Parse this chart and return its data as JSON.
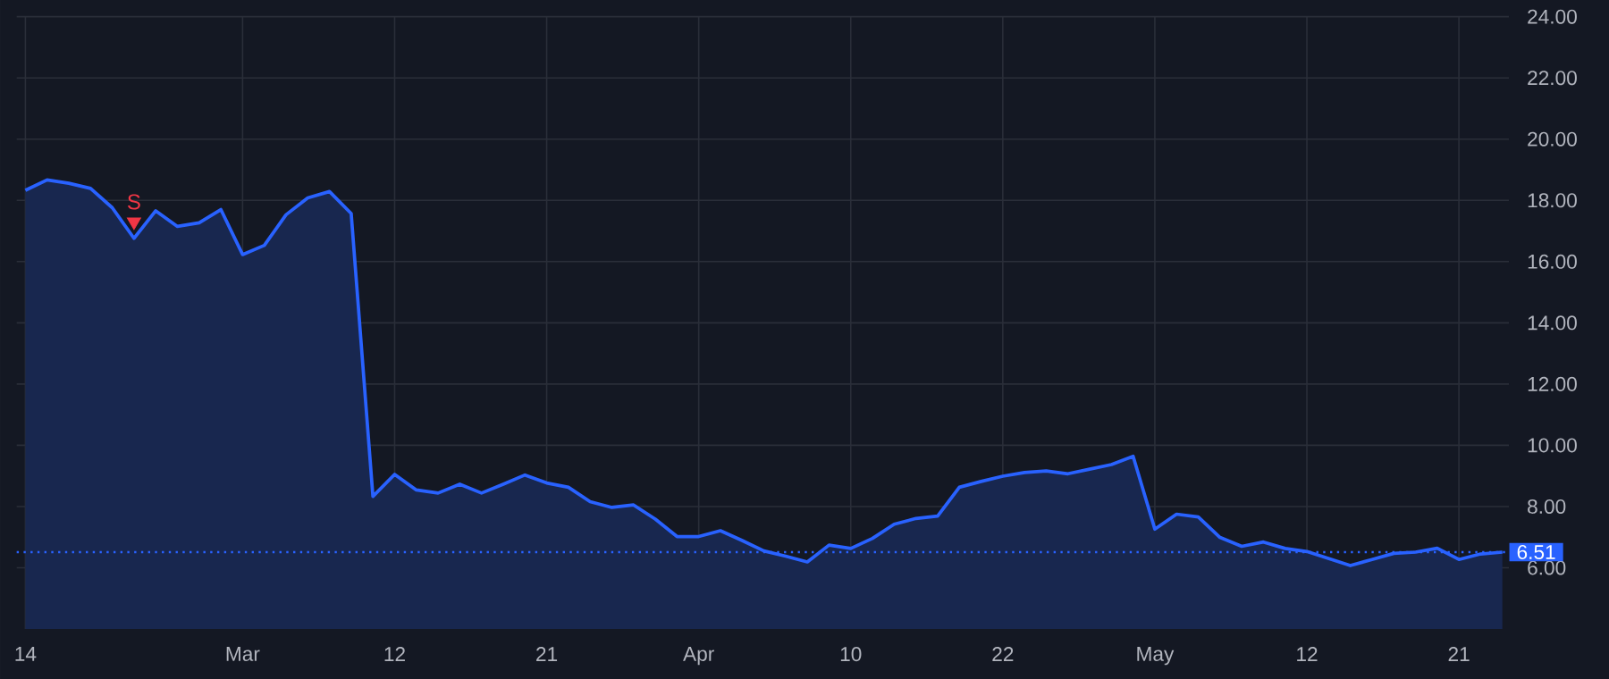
{
  "chart_data": {
    "type": "area",
    "categories": [
      "14",
      null,
      null,
      null,
      null,
      null,
      null,
      null,
      null,
      null,
      "Mar",
      null,
      null,
      null,
      null,
      null,
      null,
      "12",
      null,
      null,
      null,
      null,
      null,
      null,
      "21",
      null,
      null,
      null,
      null,
      null,
      null,
      "Apr",
      null,
      null,
      null,
      null,
      null,
      null,
      "10",
      null,
      null,
      null,
      null,
      null,
      null,
      "22",
      null,
      null,
      null,
      null,
      null,
      null,
      "May",
      null,
      null,
      null,
      null,
      null,
      null,
      "12",
      null,
      null,
      null,
      null,
      null,
      null,
      "21",
      null,
      null
    ],
    "series": [
      {
        "color": "#2962ff",
        "values": [
          18.33,
          18.67,
          18.56,
          18.39,
          17.76,
          16.76,
          17.66,
          17.15,
          17.27,
          17.7,
          16.23,
          16.53,
          17.53,
          18.08,
          18.29,
          17.57,
          8.33,
          9.05,
          8.54,
          8.44,
          8.73,
          8.44,
          8.73,
          9.03,
          8.77,
          8.63,
          8.16,
          7.97,
          8.05,
          7.59,
          7.02,
          7.02,
          7.21,
          6.89,
          6.55,
          6.38,
          6.19,
          6.74,
          6.63,
          6.96,
          7.42,
          7.61,
          7.69,
          8.63,
          8.82,
          8.99,
          9.11,
          9.16,
          9.07,
          9.22,
          9.37,
          9.64,
          7.26,
          7.75,
          7.66,
          6.99,
          6.7,
          6.84,
          6.63,
          6.53,
          6.3,
          6.07,
          6.27,
          6.47,
          6.51,
          6.64,
          6.27,
          6.45,
          6.51
        ]
      },
      {
        "type": "scatter",
        "name": "S",
        "color": "#f23645",
        "marker": "triangle",
        "values": [
          null,
          null,
          null,
          null,
          null,
          17.3,
          null,
          null,
          null,
          null,
          null,
          null,
          null,
          null,
          null,
          null,
          null,
          null,
          null,
          null,
          null,
          null,
          null,
          null,
          null,
          null,
          null,
          null,
          null,
          null,
          null,
          null,
          null,
          null,
          null,
          null,
          null,
          null,
          null,
          null,
          null,
          null,
          null,
          null,
          null,
          null,
          null,
          null,
          null,
          null,
          null,
          null,
          null,
          null,
          null,
          null,
          null,
          null,
          null,
          null,
          null,
          null,
          null,
          null,
          null,
          null,
          null,
          null,
          null
        ]
      }
    ],
    "ylim": [
      4,
      24
    ],
    "yticks": [
      {
        "value": 6,
        "label": "6.00"
      },
      {
        "value": 8,
        "label": "8.00"
      },
      {
        "value": 10,
        "label": "10.00"
      },
      {
        "value": 12,
        "label": "12.00"
      },
      {
        "value": 14,
        "label": "14.00"
      },
      {
        "value": 16,
        "label": "16.00"
      },
      {
        "value": 18,
        "label": "18.00"
      },
      {
        "value": 20,
        "label": "20.00"
      },
      {
        "value": 22,
        "label": "22.00"
      },
      {
        "value": 24,
        "label": "24.00"
      }
    ],
    "grid": true,
    "ref_lines": [
      {
        "axis": "y",
        "value": 6.51,
        "label": "6.51",
        "color": "#2962ff",
        "line_style": "dotted"
      }
    ]
  }
}
